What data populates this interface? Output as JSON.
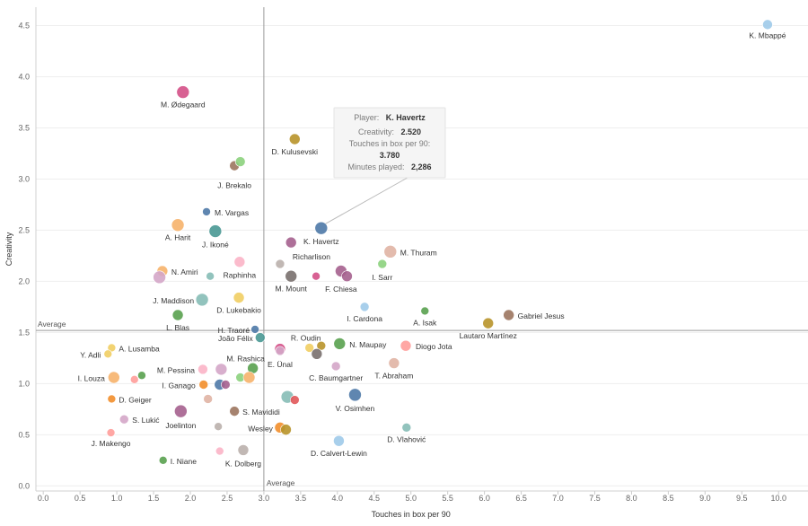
{
  "chart_data": {
    "type": "scatter",
    "xlabel": "Touches in box per 90",
    "ylabel": "Creativity",
    "xlim": [
      -0.1,
      10.4
    ],
    "ylim": [
      -0.05,
      4.68
    ],
    "xticks": [
      "0.0",
      "0.5",
      "1.0",
      "1.5",
      "2.0",
      "2.5",
      "3.0",
      "3.5",
      "4.0",
      "4.5",
      "5.0",
      "5.5",
      "6.0",
      "6.5",
      "7.0",
      "7.5",
      "8.0",
      "8.5",
      "9.0",
      "9.5",
      "10.0"
    ],
    "yticks": [
      "0.0",
      "0.5",
      "1.0",
      "1.5",
      "2.0",
      "2.5",
      "3.0",
      "3.5",
      "4.0",
      "4.5"
    ],
    "avg_x": 3.0,
    "avg_y": 1.52,
    "avg_label_x": "Average",
    "avg_label_y": "Average",
    "points": [
      {
        "name": "K. Mbappé",
        "x": 9.85,
        "y": 4.51,
        "color": "#9ecae9",
        "size": 5.5,
        "label": "K. Mbappé",
        "lx": 0,
        "ly": 15,
        "anchor": "middle"
      },
      {
        "name": "M. Ødegaard",
        "x": 1.9,
        "y": 3.85,
        "color": "#d45087",
        "size": 7,
        "label": "M. Ødegaard",
        "lx": 0,
        "ly": 17,
        "anchor": "middle"
      },
      {
        "name": "D. Kulusevski",
        "x": 3.42,
        "y": 3.39,
        "color": "#b8942a",
        "size": 6,
        "label": "D. Kulusevski",
        "lx": 0,
        "ly": 17,
        "anchor": "middle"
      },
      {
        "name": "J. Brekalo",
        "x": 2.6,
        "y": 3.13,
        "color": "#9c755f",
        "size": 5.5,
        "label": "J. Brekalo",
        "lx": 0,
        "ly": 25,
        "anchor": "middle"
      },
      {
        "name": "J. Brekalo 2",
        "x": 2.68,
        "y": 3.17,
        "color": "#8cd17d",
        "size": 5.5,
        "label": "",
        "lx": 0,
        "ly": 0,
        "anchor": "middle"
      },
      {
        "name": "M. Vargas",
        "x": 2.22,
        "y": 2.68,
        "color": "#4e79a7",
        "size": 4.5,
        "label": "M. Vargas",
        "lx": 9,
        "ly": 4,
        "anchor": "start"
      },
      {
        "name": "A. Harit",
        "x": 1.83,
        "y": 2.55,
        "color": "#f6b26b",
        "size": 7,
        "label": "A. Harit",
        "lx": 0,
        "ly": 17,
        "anchor": "middle"
      },
      {
        "name": "J. Ikoné",
        "x": 2.34,
        "y": 2.49,
        "color": "#499894",
        "size": 7,
        "label": "J. Ikoné",
        "lx": 0,
        "ly": 18,
        "anchor": "middle"
      },
      {
        "name": "K. Havertz",
        "x": 3.78,
        "y": 2.52,
        "color": "#4e79a7",
        "size": 7,
        "label": "K. Havertz",
        "lx": 0,
        "ly": 18,
        "anchor": "middle"
      },
      {
        "name": "Misc a",
        "x": 3.37,
        "y": 2.38,
        "color": "#a5608e",
        "size": 6,
        "label": "",
        "lx": 0,
        "ly": 0,
        "anchor": "middle"
      },
      {
        "name": "M. Thuram",
        "x": 4.72,
        "y": 2.29,
        "color": "#e0b4a4",
        "size": 7,
        "label": "M. Thuram",
        "lx": 11,
        "ly": 4,
        "anchor": "start"
      },
      {
        "name": "Raphinha",
        "x": 2.67,
        "y": 2.19,
        "color": "#fbb4c7",
        "size": 6,
        "label": "Raphinha",
        "lx": 0,
        "ly": 18,
        "anchor": "middle"
      },
      {
        "name": "Richarlison",
        "x": 3.22,
        "y": 2.17,
        "color": "#bab0ac",
        "size": 5,
        "label": "Richarlison",
        "lx": 14,
        "ly": -5,
        "anchor": "start"
      },
      {
        "name": "I. Sarr",
        "x": 4.61,
        "y": 2.17,
        "color": "#8cd17d",
        "size": 5,
        "label": "I. Sarr",
        "lx": 0,
        "ly": 18,
        "anchor": "middle"
      },
      {
        "name": "N. Amiri",
        "x": 1.62,
        "y": 2.1,
        "color": "#f6b26b",
        "size": 6,
        "label": "N. Amiri",
        "lx": 10,
        "ly": 4,
        "anchor": "start"
      },
      {
        "name": "Misc b",
        "x": 1.58,
        "y": 2.04,
        "color": "#d4a6c8",
        "size": 7,
        "label": "",
        "lx": 0,
        "ly": 0,
        "anchor": "middle"
      },
      {
        "name": "Misc c",
        "x": 2.27,
        "y": 2.05,
        "color": "#86bcb6",
        "size": 4.5,
        "label": "",
        "lx": 0,
        "ly": 0,
        "anchor": "middle"
      },
      {
        "name": "F. Chiesa",
        "x": 4.05,
        "y": 2.1,
        "color": "#a5608e",
        "size": 6.5,
        "label": "F. Chiesa",
        "lx": 0,
        "ly": 23,
        "anchor": "middle"
      },
      {
        "name": "F. Chiesa 2",
        "x": 4.13,
        "y": 2.05,
        "color": "#a5608e",
        "size": 6,
        "label": "",
        "lx": 0,
        "ly": 0,
        "anchor": "middle"
      },
      {
        "name": "M. Mount",
        "x": 3.37,
        "y": 2.05,
        "color": "#79706e",
        "size": 6.5,
        "label": "M. Mount",
        "lx": 0,
        "ly": 17,
        "anchor": "middle"
      },
      {
        "name": "Misc d",
        "x": 3.71,
        "y": 2.05,
        "color": "#d45087",
        "size": 4.5,
        "label": "",
        "lx": 0,
        "ly": 0,
        "anchor": "middle"
      },
      {
        "name": "J. Maddison",
        "x": 2.16,
        "y": 1.82,
        "color": "#86bcb6",
        "size": 7,
        "label": "J. Maddison",
        "lx": -9,
        "ly": 4,
        "anchor": "end"
      },
      {
        "name": "D. Lukebakio",
        "x": 2.66,
        "y": 1.84,
        "color": "#f1ce63",
        "size": 6,
        "label": "D. Lukebakio",
        "lx": 0,
        "ly": 17,
        "anchor": "middle"
      },
      {
        "name": "I. Cardona",
        "x": 4.37,
        "y": 1.75,
        "color": "#9ecae9",
        "size": 5,
        "label": "I. Cardona",
        "lx": 0,
        "ly": 16,
        "anchor": "middle"
      },
      {
        "name": "Gabriel Jesus",
        "x": 6.33,
        "y": 1.67,
        "color": "#9c755f",
        "size": 6,
        "label": "Gabriel Jesus",
        "lx": 10,
        "ly": 4,
        "anchor": "start"
      },
      {
        "name": "A. Isak",
        "x": 5.19,
        "y": 1.71,
        "color": "#59a14f",
        "size": 4.5,
        "label": "A. Isak",
        "lx": 0,
        "ly": 16,
        "anchor": "middle"
      },
      {
        "name": "L. Blas",
        "x": 1.83,
        "y": 1.67,
        "color": "#59a14f",
        "size": 6,
        "label": "L. Blas",
        "lx": 0,
        "ly": 17,
        "anchor": "middle"
      },
      {
        "name": "Lautaro Martínez",
        "x": 6.05,
        "y": 1.59,
        "color": "#b8942a",
        "size": 6,
        "label": "Lautaro Martínez",
        "lx": 0,
        "ly": 17,
        "anchor": "middle"
      },
      {
        "name": "H. Traoré",
        "x": 2.88,
        "y": 1.53,
        "color": "#4e79a7",
        "size": 4.5,
        "label": "H. Traoré",
        "lx": -6,
        "ly": 4,
        "anchor": "end"
      },
      {
        "name": "João Félix",
        "x": 2.95,
        "y": 1.45,
        "color": "#499894",
        "size": 5.5,
        "label": "João Félix",
        "lx": -8,
        "ly": 4,
        "anchor": "end"
      },
      {
        "name": "R. Oudin",
        "x": 3.22,
        "y": 1.34,
        "color": "#d45087",
        "size": 6,
        "label": "R. Oudin",
        "lx": 12,
        "ly": -9,
        "anchor": "start"
      },
      {
        "name": "Misc e",
        "x": 3.62,
        "y": 1.35,
        "color": "#f1ce63",
        "size": 5,
        "label": "",
        "lx": 0,
        "ly": 0,
        "anchor": "middle"
      },
      {
        "name": "Misc f",
        "x": 3.78,
        "y": 1.37,
        "color": "#b8942a",
        "size": 5,
        "label": "",
        "lx": 0,
        "ly": 0,
        "anchor": "middle"
      },
      {
        "name": "E. Ünal",
        "x": 3.22,
        "y": 1.32,
        "color": "#d4a6c8",
        "size": 5,
        "label": "E. Ünal",
        "lx": 0,
        "ly": 18,
        "anchor": "middle"
      },
      {
        "name": "Misc g",
        "x": 3.72,
        "y": 1.29,
        "color": "#79706e",
        "size": 6,
        "label": "",
        "lx": 0,
        "ly": 0,
        "anchor": "middle"
      },
      {
        "name": "N. Maupay",
        "x": 4.03,
        "y": 1.39,
        "color": "#59a14f",
        "size": 6.5,
        "label": "N. Maupay",
        "lx": 11,
        "ly": 4,
        "anchor": "start"
      },
      {
        "name": "Diogo Jota",
        "x": 4.93,
        "y": 1.37,
        "color": "#ff9d9a",
        "size": 6,
        "label": "Diogo Jota",
        "lx": 11,
        "ly": 4,
        "anchor": "start"
      },
      {
        "name": "A. Lusamba",
        "x": 0.93,
        "y": 1.35,
        "color": "#f1ce63",
        "size": 4.5,
        "label": "A. Lusamba",
        "lx": 8,
        "ly": 4,
        "anchor": "start"
      },
      {
        "name": "Y. Adli",
        "x": 0.88,
        "y": 1.29,
        "color": "#f1ce63",
        "size": 4.5,
        "label": "Y. Adli",
        "lx": -8,
        "ly": 4,
        "anchor": "end"
      },
      {
        "name": "T. Abraham",
        "x": 4.77,
        "y": 1.2,
        "color": "#e0b4a4",
        "size": 6,
        "label": "T. Abraham",
        "lx": 0,
        "ly": 17,
        "anchor": "middle"
      },
      {
        "name": "C. Baumgartner",
        "x": 3.98,
        "y": 1.17,
        "color": "#d4a6c8",
        "size": 5,
        "label": "C. Baumgartner",
        "lx": 0,
        "ly": 16,
        "anchor": "middle"
      },
      {
        "name": "M. Pessina",
        "x": 2.17,
        "y": 1.14,
        "color": "#fbb4c7",
        "size": 5.5,
        "label": "M. Pessina",
        "lx": -9,
        "ly": 4,
        "anchor": "end"
      },
      {
        "name": "M. Rashica",
        "x": 2.42,
        "y": 1.14,
        "color": "#d4a6c8",
        "size": 6.5,
        "label": "M. Rashica",
        "lx": 6,
        "ly": -9,
        "anchor": "start"
      },
      {
        "name": "Misc h",
        "x": 2.85,
        "y": 1.15,
        "color": "#59a14f",
        "size": 6,
        "label": "",
        "lx": 0,
        "ly": 0,
        "anchor": "middle"
      },
      {
        "name": "Misc i",
        "x": 2.68,
        "y": 1.06,
        "color": "#8cd17d",
        "size": 5,
        "label": "",
        "lx": 0,
        "ly": 0,
        "anchor": "middle"
      },
      {
        "name": "Misc j",
        "x": 2.8,
        "y": 1.06,
        "color": "#f6b26b",
        "size": 6.5,
        "label": "",
        "lx": 0,
        "ly": 0,
        "anchor": "middle"
      },
      {
        "name": "I. Louza",
        "x": 0.96,
        "y": 1.06,
        "color": "#f6b26b",
        "size": 6.5,
        "label": "I. Louza",
        "lx": -10,
        "ly": 4,
        "anchor": "end"
      },
      {
        "name": "Misc k",
        "x": 1.24,
        "y": 1.04,
        "color": "#ff9d9a",
        "size": 4.5,
        "label": "",
        "lx": 0,
        "ly": 0,
        "anchor": "middle"
      },
      {
        "name": "Misc l",
        "x": 1.34,
        "y": 1.08,
        "color": "#59a14f",
        "size": 4.5,
        "label": "",
        "lx": 0,
        "ly": 0,
        "anchor": "middle"
      },
      {
        "name": "I. Ganago",
        "x": 2.18,
        "y": 0.99,
        "color": "#f28e2b",
        "size": 5,
        "label": "I. Ganago",
        "lx": -9,
        "ly": 4,
        "anchor": "end"
      },
      {
        "name": "Misc m",
        "x": 2.4,
        "y": 0.99,
        "color": "#4e79a7",
        "size": 6,
        "label": "",
        "lx": 0,
        "ly": 0,
        "anchor": "middle"
      },
      {
        "name": "Misc n",
        "x": 2.48,
        "y": 0.99,
        "color": "#a5608e",
        "size": 5,
        "label": "",
        "lx": 0,
        "ly": 0,
        "anchor": "middle"
      },
      {
        "name": "Misc o",
        "x": 3.32,
        "y": 0.87,
        "color": "#86bcb6",
        "size": 7,
        "label": "",
        "lx": 0,
        "ly": 0,
        "anchor": "middle"
      },
      {
        "name": "Misc p",
        "x": 3.42,
        "y": 0.84,
        "color": "#e15759",
        "size": 5,
        "label": "",
        "lx": 0,
        "ly": 0,
        "anchor": "middle"
      },
      {
        "name": "V. Osimhen",
        "x": 4.24,
        "y": 0.89,
        "color": "#4e79a7",
        "size": 7,
        "label": "V. Osimhen",
        "lx": 0,
        "ly": 18,
        "anchor": "middle"
      },
      {
        "name": "D. Geiger",
        "x": 0.93,
        "y": 0.85,
        "color": "#f28e2b",
        "size": 4.5,
        "label": "D. Geiger",
        "lx": 8,
        "ly": 4,
        "anchor": "start"
      },
      {
        "name": "Misc q",
        "x": 2.24,
        "y": 0.85,
        "color": "#e0b4a4",
        "size": 5,
        "label": "",
        "lx": 0,
        "ly": 0,
        "anchor": "middle"
      },
      {
        "name": "Joelinton",
        "x": 1.87,
        "y": 0.73,
        "color": "#a5608e",
        "size": 7,
        "label": "Joelinton",
        "lx": 0,
        "ly": 19,
        "anchor": "middle"
      },
      {
        "name": "S. Mavididi",
        "x": 2.6,
        "y": 0.73,
        "color": "#9c755f",
        "size": 5.5,
        "label": "S. Mavididi",
        "lx": 9,
        "ly": 4,
        "anchor": "start"
      },
      {
        "name": "S. Lukić",
        "x": 1.1,
        "y": 0.65,
        "color": "#d4a6c8",
        "size": 5,
        "label": "S. Lukić",
        "lx": 9,
        "ly": 4,
        "anchor": "start"
      },
      {
        "name": "D. Vlahović",
        "x": 4.94,
        "y": 0.57,
        "color": "#86bcb6",
        "size": 5,
        "label": "D. Vlahović",
        "lx": 0,
        "ly": 16,
        "anchor": "middle"
      },
      {
        "name": "Misc r",
        "x": 2.38,
        "y": 0.58,
        "color": "#bab0ac",
        "size": 4.5,
        "label": "",
        "lx": 0,
        "ly": 0,
        "anchor": "middle"
      },
      {
        "name": "Wesley",
        "x": 3.22,
        "y": 0.57,
        "color": "#f28e2b",
        "size": 6,
        "label": "Wesley",
        "lx": -8,
        "ly": 4,
        "anchor": "end"
      },
      {
        "name": "Misc s",
        "x": 3.3,
        "y": 0.55,
        "color": "#b8942a",
        "size": 6,
        "label": "",
        "lx": 0,
        "ly": 0,
        "anchor": "middle"
      },
      {
        "name": "J. Makengo",
        "x": 0.92,
        "y": 0.52,
        "color": "#ff9d9a",
        "size": 4.5,
        "label": "J. Makengo",
        "lx": 0,
        "ly": 15,
        "anchor": "middle"
      },
      {
        "name": "D. Calvert-Lewin",
        "x": 4.02,
        "y": 0.44,
        "color": "#9ecae9",
        "size": 6,
        "label": "D. Calvert-Lewin",
        "lx": 0,
        "ly": 17,
        "anchor": "middle"
      },
      {
        "name": "Misc t",
        "x": 2.4,
        "y": 0.34,
        "color": "#fbb4c7",
        "size": 4.5,
        "label": "",
        "lx": 0,
        "ly": 0,
        "anchor": "middle"
      },
      {
        "name": "K. Dolberg",
        "x": 2.72,
        "y": 0.35,
        "color": "#bab0ac",
        "size": 6,
        "label": "K. Dolberg",
        "lx": 0,
        "ly": 18,
        "anchor": "middle"
      },
      {
        "name": "I. Niane",
        "x": 1.63,
        "y": 0.25,
        "color": "#59a14f",
        "size": 4.5,
        "label": "I. Niane",
        "lx": 8,
        "ly": 4,
        "anchor": "start"
      }
    ],
    "tooltip": {
      "player_label": "Player:",
      "player_value": "K. Havertz",
      "creativity_label": "Creativity:",
      "creativity_value": "2.520",
      "touches_label": "Touches in box per 90:",
      "touches_value": "3.780",
      "minutes_label": "Minutes played:",
      "minutes_value": "2,286",
      "target": "K. Havertz"
    }
  }
}
